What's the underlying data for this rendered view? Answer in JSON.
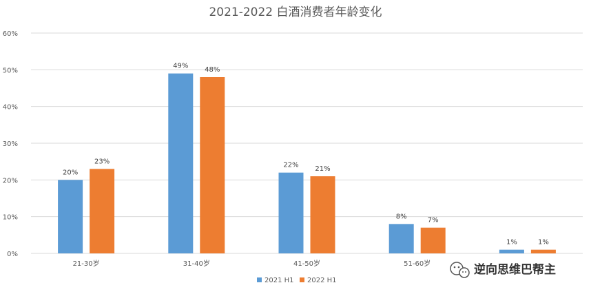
{
  "chart_data": {
    "type": "bar",
    "title": "2021-2022 白酒消费者年龄变化",
    "categories": [
      "21-30岁",
      "31-40岁",
      "41-50岁",
      "51-60岁",
      ""
    ],
    "series": [
      {
        "name": "2021 H1",
        "values": [
          20,
          49,
          22,
          8,
          1
        ],
        "color": "#5b9bd5"
      },
      {
        "name": "2022 H1",
        "values": [
          23,
          48,
          21,
          7,
          1
        ],
        "color": "#ed7d31"
      }
    ],
    "data_labels": [
      [
        "20%",
        "49%",
        "22%",
        "8%",
        "1%"
      ],
      [
        "23%",
        "48%",
        "21%",
        "7%",
        "1%"
      ]
    ],
    "yticks": [
      "0%",
      "10%",
      "20%",
      "30%",
      "40%",
      "50%",
      "60%"
    ],
    "ylim": [
      0,
      60
    ],
    "grid": true,
    "legend_position": "bottom"
  },
  "watermark": {
    "icon": "wechat-icon",
    "text": "逆向思维巴帮主"
  }
}
